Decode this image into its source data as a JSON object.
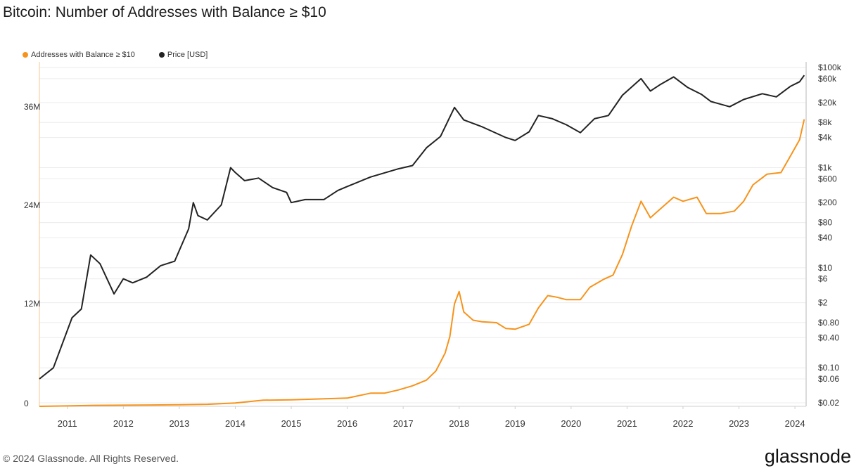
{
  "title": "Bitcoin: Number of Addresses with Balance ≥ $10",
  "legend": {
    "addresses": "Addresses with Balance ≥ $10",
    "price": "Price [USD]"
  },
  "footer": "© 2024 Glassnode. All Rights Reserved.",
  "brand": "glassnode",
  "colors": {
    "addresses": "#f7931a",
    "price": "#222222",
    "grid": "#ececec"
  },
  "chart_data": {
    "type": "line",
    "title": "Bitcoin: Number of Addresses with Balance ≥ $10",
    "x_ticks": [
      "2011",
      "2012",
      "2013",
      "2014",
      "2015",
      "2016",
      "2017",
      "2018",
      "2019",
      "2020",
      "2021",
      "2022",
      "2023",
      "2024"
    ],
    "y_left_ticks": [
      "0",
      "12M",
      "24M",
      "36M"
    ],
    "y_right_ticks": [
      "$100k",
      "$60k",
      "$20k",
      "$8k",
      "$4k",
      "$1k",
      "$600",
      "$200",
      "$80",
      "$40",
      "$10",
      "$6",
      "$2",
      "$0.80",
      "$0.40",
      "$0.10",
      "$0.06",
      "$0.02"
    ],
    "y_right_scale": "log",
    "series": [
      {
        "name": "Addresses with Balance ≥ $10",
        "axis": "left",
        "color": "#f7931a",
        "points": [
          [
            "2010-07",
            0.0
          ],
          [
            "2011-01",
            0.05
          ],
          [
            "2011-07",
            0.12
          ],
          [
            "2012-01",
            0.14
          ],
          [
            "2012-07",
            0.16
          ],
          [
            "2013-01",
            0.2
          ],
          [
            "2013-07",
            0.25
          ],
          [
            "2014-01",
            0.4
          ],
          [
            "2014-07",
            0.75
          ],
          [
            "2015-01",
            0.8
          ],
          [
            "2015-07",
            0.9
          ],
          [
            "2016-01",
            1.0
          ],
          [
            "2016-06",
            1.6
          ],
          [
            "2016-09",
            1.6
          ],
          [
            "2016-12",
            2.0
          ],
          [
            "2017-03",
            2.5
          ],
          [
            "2017-06",
            3.2
          ],
          [
            "2017-08",
            4.3
          ],
          [
            "2017-10",
            6.5
          ],
          [
            "2017-11",
            8.5
          ],
          [
            "2017-12",
            12.5
          ],
          [
            "2018-01",
            14.0
          ],
          [
            "2018-02",
            11.5
          ],
          [
            "2018-04",
            10.5
          ],
          [
            "2018-06",
            10.3
          ],
          [
            "2018-09",
            10.2
          ],
          [
            "2018-11",
            9.5
          ],
          [
            "2019-01",
            9.4
          ],
          [
            "2019-04",
            10.0
          ],
          [
            "2019-06",
            12.0
          ],
          [
            "2019-08",
            13.5
          ],
          [
            "2019-10",
            13.3
          ],
          [
            "2019-12",
            13.0
          ],
          [
            "2020-03",
            13.0
          ],
          [
            "2020-05",
            14.5
          ],
          [
            "2020-08",
            15.5
          ],
          [
            "2020-10",
            16.0
          ],
          [
            "2020-12",
            18.5
          ],
          [
            "2021-02",
            22.0
          ],
          [
            "2021-04",
            25.0
          ],
          [
            "2021-06",
            23.0
          ],
          [
            "2021-08",
            24.0
          ],
          [
            "2021-11",
            25.5
          ],
          [
            "2022-01",
            25.0
          ],
          [
            "2022-04",
            25.5
          ],
          [
            "2022-06",
            23.5
          ],
          [
            "2022-09",
            23.5
          ],
          [
            "2022-12",
            23.8
          ],
          [
            "2023-02",
            25.0
          ],
          [
            "2023-04",
            27.0
          ],
          [
            "2023-07",
            28.3
          ],
          [
            "2023-10",
            28.5
          ],
          [
            "2023-12",
            30.5
          ],
          [
            "2024-02",
            32.5
          ],
          [
            "2024-03",
            35.0
          ]
        ]
      },
      {
        "name": "Price [USD]",
        "axis": "right",
        "color": "#222222",
        "points": [
          [
            "2010-07",
            0.06
          ],
          [
            "2010-10",
            0.1
          ],
          [
            "2011-02",
            1.0
          ],
          [
            "2011-04",
            1.5
          ],
          [
            "2011-06",
            18
          ],
          [
            "2011-08",
            12
          ],
          [
            "2011-11",
            3
          ],
          [
            "2012-01",
            6
          ],
          [
            "2012-03",
            5
          ],
          [
            "2012-06",
            6.5
          ],
          [
            "2012-09",
            11
          ],
          [
            "2012-12",
            13.5
          ],
          [
            "2013-03",
            60
          ],
          [
            "2013-04",
            200
          ],
          [
            "2013-05",
            110
          ],
          [
            "2013-07",
            90
          ],
          [
            "2013-10",
            180
          ],
          [
            "2013-12",
            1000
          ],
          [
            "2014-01",
            800
          ],
          [
            "2014-03",
            550
          ],
          [
            "2014-06",
            620
          ],
          [
            "2014-09",
            400
          ],
          [
            "2014-12",
            320
          ],
          [
            "2015-01",
            200
          ],
          [
            "2015-04",
            230
          ],
          [
            "2015-08",
            230
          ],
          [
            "2015-11",
            350
          ],
          [
            "2016-01",
            420
          ],
          [
            "2016-06",
            650
          ],
          [
            "2016-12",
            950
          ],
          [
            "2017-03",
            1100
          ],
          [
            "2017-06",
            2500
          ],
          [
            "2017-09",
            4200
          ],
          [
            "2017-12",
            16000
          ],
          [
            "2018-02",
            9000
          ],
          [
            "2018-06",
            6500
          ],
          [
            "2018-11",
            4000
          ],
          [
            "2019-01",
            3500
          ],
          [
            "2019-04",
            5200
          ],
          [
            "2019-06",
            11000
          ],
          [
            "2019-09",
            9500
          ],
          [
            "2019-12",
            7200
          ],
          [
            "2020-03",
            5000
          ],
          [
            "2020-06",
            9500
          ],
          [
            "2020-09",
            11000
          ],
          [
            "2020-12",
            28000
          ],
          [
            "2021-04",
            60000
          ],
          [
            "2021-06",
            34000
          ],
          [
            "2021-08",
            45000
          ],
          [
            "2021-11",
            65000
          ],
          [
            "2022-02",
            40000
          ],
          [
            "2022-05",
            29000
          ],
          [
            "2022-07",
            21000
          ],
          [
            "2022-11",
            16500
          ],
          [
            "2023-02",
            23000
          ],
          [
            "2023-06",
            30000
          ],
          [
            "2023-09",
            26000
          ],
          [
            "2023-12",
            42000
          ],
          [
            "2024-02",
            52000
          ],
          [
            "2024-03",
            70000
          ]
        ]
      }
    ]
  }
}
